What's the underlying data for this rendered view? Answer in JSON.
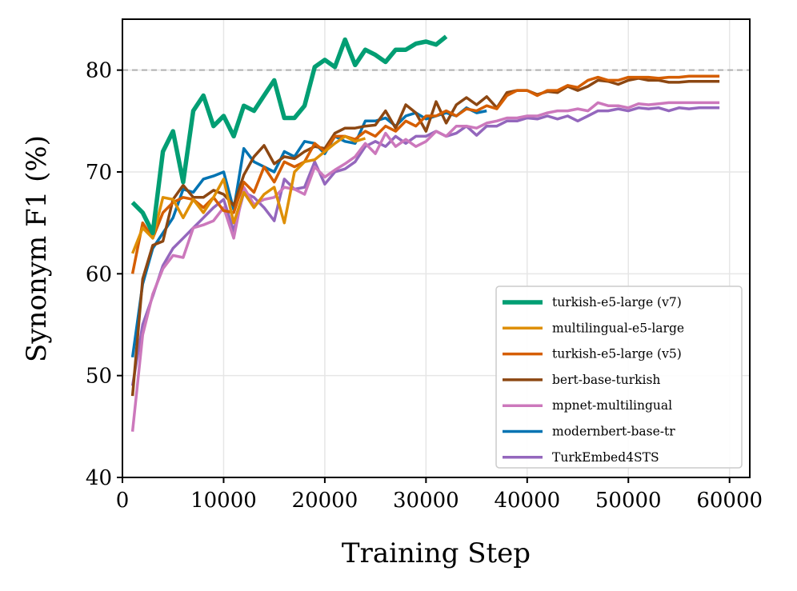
{
  "chart_data": {
    "type": "line",
    "title": "",
    "xlabel": "Training Step",
    "ylabel": "Synonym F1 (%)",
    "xlim": [
      0,
      62000
    ],
    "ylim": [
      40,
      85
    ],
    "xticks": [
      0,
      10000,
      20000,
      30000,
      40000,
      50000,
      60000
    ],
    "xtick_labels": [
      "0",
      "10000",
      "20000",
      "30000",
      "40000",
      "50000",
      "60000"
    ],
    "yticks": [
      40,
      50,
      60,
      70,
      80
    ],
    "ytick_labels": [
      "40",
      "50",
      "60",
      "70",
      "80"
    ],
    "grid": true,
    "reference_line": {
      "y": 80,
      "style": "dashed",
      "color": "#b0b0b0"
    },
    "legend_position": "lower-right",
    "series": [
      {
        "name": "turkish-e5-large (v7)",
        "color": "#029e73",
        "thick": true,
        "x": [
          1000,
          2000,
          3000,
          4000,
          5000,
          6000,
          7000,
          8000,
          9000,
          10000,
          11000,
          12000,
          13000,
          14000,
          15000,
          16000,
          17000,
          18000,
          19000,
          20000,
          21000,
          22000,
          23000,
          24000,
          25000,
          26000,
          27000,
          28000,
          29000,
          30000,
          31000,
          32000
        ],
        "values": [
          67,
          66,
          64,
          72,
          74,
          69,
          76,
          77.5,
          74.5,
          75.5,
          73.5,
          76.5,
          76,
          77.5,
          79,
          75.3,
          75.3,
          76.5,
          80.3,
          81,
          80.3,
          83,
          80.5,
          82,
          81.5,
          80.8,
          82,
          82,
          82.6,
          82.8,
          82.5,
          83.3
        ]
      },
      {
        "name": "multilingual-e5-large",
        "color": "#de8f05",
        "x": [
          1000,
          2000,
          3000,
          4000,
          5000,
          6000,
          7000,
          8000,
          9000,
          10000,
          11000,
          12000,
          13000,
          14000,
          15000,
          16000,
          17000,
          18000,
          19000,
          20000,
          21000,
          22000,
          23000,
          24000
        ],
        "values": [
          62,
          64.5,
          63.5,
          67.5,
          67.3,
          65.5,
          67.3,
          66,
          67.5,
          69.3,
          65,
          68,
          66.5,
          67.8,
          68.5,
          65,
          70,
          71,
          71.2,
          72,
          72.8,
          73.5,
          73,
          73.3
        ]
      },
      {
        "name": "turkish-e5-large (v5)",
        "color": "#d55e00",
        "x": [
          1000,
          2000,
          3000,
          4000,
          5000,
          6000,
          7000,
          8000,
          9000,
          10000,
          11000,
          12000,
          13000,
          14000,
          15000,
          16000,
          17000,
          18000,
          19000,
          20000,
          21000,
          22000,
          23000,
          24000,
          25000,
          26000,
          27000,
          28000,
          29000,
          30000,
          31000,
          32000,
          33000,
          34000,
          35000,
          36000,
          37000,
          38000,
          39000,
          40000,
          41000,
          42000,
          43000,
          44000,
          45000,
          46000,
          47000,
          48000,
          49000,
          50000,
          51000,
          52000,
          53000,
          54000,
          55000,
          56000,
          57000,
          58000,
          59000
        ],
        "values": [
          60,
          65,
          63.5,
          66,
          67,
          67.5,
          67.3,
          66.5,
          67.5,
          66.2,
          66,
          69,
          68,
          70.5,
          69,
          71,
          70.5,
          71,
          72.8,
          72,
          73.5,
          73.5,
          73.2,
          74,
          73.5,
          74.5,
          74,
          75,
          74.5,
          75.5,
          75.5,
          76,
          75.5,
          76.2,
          76,
          76.5,
          76.2,
          77.5,
          78,
          78,
          77.5,
          78,
          78,
          78.5,
          78.3,
          79,
          79.3,
          79,
          79,
          79.3,
          79.3,
          79.3,
          79.2,
          79.3,
          79.3,
          79.4,
          79.4,
          79.4,
          79.4
        ]
      },
      {
        "name": "bert-base-turkish",
        "color": "#8c4712",
        "x": [
          1000,
          2000,
          3000,
          4000,
          5000,
          6000,
          7000,
          8000,
          9000,
          10000,
          11000,
          12000,
          13000,
          14000,
          15000,
          16000,
          17000,
          18000,
          19000,
          20000,
          21000,
          22000,
          23000,
          24000,
          25000,
          26000,
          27000,
          28000,
          29000,
          30000,
          31000,
          32000,
          33000,
          34000,
          35000,
          36000,
          37000,
          38000,
          39000,
          40000,
          41000,
          42000,
          43000,
          44000,
          45000,
          46000,
          47000,
          48000,
          49000,
          50000,
          51000,
          52000,
          53000,
          54000,
          55000,
          56000,
          57000,
          58000,
          59000
        ],
        "values": [
          48,
          59.5,
          62.8,
          63.2,
          67.3,
          68.7,
          67.5,
          67.5,
          68.2,
          67.8,
          66.7,
          69.7,
          71.5,
          72.6,
          70.8,
          71.5,
          71.3,
          72,
          72.5,
          72.3,
          73.8,
          74.3,
          74.3,
          74.5,
          74.6,
          76,
          74.3,
          76.6,
          75.8,
          74,
          76.9,
          74.8,
          76.6,
          77.3,
          76.6,
          77.4,
          76.3,
          77.8,
          78,
          78,
          77.6,
          77.9,
          77.8,
          78.4,
          78,
          78.4,
          79,
          78.9,
          78.6,
          79,
          79.2,
          79,
          79,
          78.8,
          78.8,
          78.9,
          78.9,
          78.9,
          78.9
        ]
      },
      {
        "name": "mpnet-multilingual",
        "color": "#cc78bc",
        "x": [
          1000,
          2000,
          3000,
          4000,
          5000,
          6000,
          7000,
          8000,
          9000,
          10000,
          11000,
          12000,
          13000,
          14000,
          15000,
          16000,
          17000,
          18000,
          19000,
          20000,
          21000,
          22000,
          23000,
          24000,
          25000,
          26000,
          27000,
          28000,
          29000,
          30000,
          31000,
          32000,
          33000,
          34000,
          35000,
          36000,
          37000,
          38000,
          39000,
          40000,
          41000,
          42000,
          43000,
          44000,
          45000,
          46000,
          47000,
          48000,
          49000,
          50000,
          51000,
          52000,
          53000,
          54000,
          55000,
          56000,
          57000,
          58000,
          59000
        ],
        "values": [
          44.5,
          54,
          58,
          60.5,
          61.8,
          61.6,
          64.5,
          64.8,
          65.2,
          66.5,
          63.5,
          68.5,
          66.8,
          67.3,
          67.5,
          68.5,
          68.3,
          67.8,
          70.5,
          69.5,
          70.2,
          70.8,
          71.5,
          72.8,
          71.8,
          73.8,
          72.5,
          73.2,
          72.5,
          73,
          74,
          73.5,
          74.5,
          74.5,
          74.3,
          74.8,
          75,
          75.3,
          75.3,
          75.5,
          75.5,
          75.8,
          76,
          76,
          76.2,
          76,
          76.8,
          76.5,
          76.5,
          76.3,
          76.7,
          76.6,
          76.7,
          76.8,
          76.8,
          76.8,
          76.8,
          76.8,
          76.8
        ]
      },
      {
        "name": "modernbert-base-tr",
        "color": "#0173b2",
        "x": [
          1000,
          2000,
          3000,
          4000,
          5000,
          6000,
          7000,
          8000,
          9000,
          10000,
          11000,
          12000,
          13000,
          14000,
          15000,
          16000,
          17000,
          18000,
          19000,
          20000,
          21000,
          22000,
          23000,
          24000,
          25000,
          26000,
          27000,
          28000,
          29000,
          30000,
          31000,
          32000,
          33000,
          34000,
          35000,
          36000
        ],
        "values": [
          51.8,
          59,
          62.5,
          64,
          65.5,
          68.3,
          68,
          69.3,
          69.6,
          70,
          66.3,
          72.3,
          71,
          70.5,
          70,
          72,
          71.5,
          73,
          72.8,
          71.8,
          73.5,
          73,
          72.8,
          75,
          75,
          75.3,
          74.5,
          75.5,
          75.8,
          75.2,
          75.5,
          75.8,
          75.5,
          76.3,
          75.8,
          76
        ]
      },
      {
        "name": "TurkEmbed4STS",
        "color": "#9467bd",
        "x": [
          1000,
          2000,
          3000,
          4000,
          5000,
          6000,
          7000,
          8000,
          9000,
          10000,
          11000,
          12000,
          13000,
          14000,
          15000,
          16000,
          17000,
          18000,
          19000,
          20000,
          21000,
          22000,
          23000,
          24000,
          25000,
          26000,
          27000,
          28000,
          29000,
          30000,
          31000,
          32000,
          33000,
          34000,
          35000,
          36000,
          37000,
          38000,
          39000,
          40000,
          41000,
          42000,
          43000,
          44000,
          45000,
          46000,
          47000,
          48000,
          49000,
          50000,
          51000,
          52000,
          53000,
          54000,
          55000,
          56000,
          57000,
          58000,
          59000
        ],
        "values": [
          49,
          55,
          57.8,
          60.8,
          62.5,
          63.5,
          64.5,
          65.5,
          66.5,
          67.3,
          64.2,
          68,
          67.5,
          66.5,
          65.2,
          69.3,
          68.3,
          68.5,
          71,
          68.8,
          70,
          70.3,
          71,
          72.5,
          73,
          72.5,
          73.5,
          72.8,
          73.5,
          73.5,
          74,
          73.5,
          73.8,
          74.5,
          73.6,
          74.5,
          74.5,
          75,
          75,
          75.3,
          75.2,
          75.5,
          75.2,
          75.5,
          75,
          75.5,
          76,
          76,
          76.2,
          76,
          76.3,
          76.2,
          76.3,
          76,
          76.3,
          76.2,
          76.3,
          76.3,
          76.3
        ]
      }
    ]
  }
}
